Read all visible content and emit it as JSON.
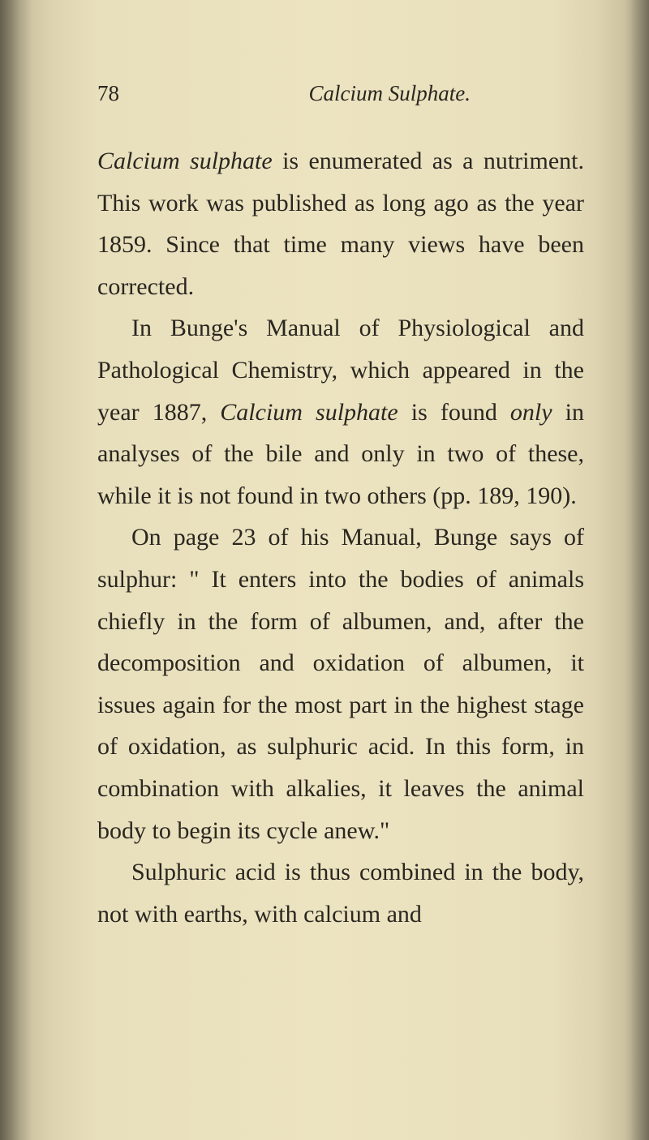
{
  "page": {
    "number": "78",
    "running_title": "Calcium Sulphate.",
    "background_color": "#ece3c0",
    "text_color": "#2a2620",
    "body_fontsize": 30,
    "header_fontsize": 27,
    "line_height": 1.72
  },
  "paragraphs": {
    "p1_lead_italic": "Calcium sulphate",
    "p1_rest": " is enumerated as a nutriment. This work was published as long ago as the year 1859. Since that time many views have been corrected.",
    "p2_a": "In Bunge's Manual of Physiological and Pathological Chemistry, which appeared in the year 1887, ",
    "p2_italic1": "Calcium sulphate",
    "p2_b": " is found ",
    "p2_italic2": "only",
    "p2_c": " in analyses of the bile and only in two of these, while it is not found in two others (pp. 189, 190).",
    "p3": "On page 23 of his Manual, Bunge says of sulphur: \" It enters into the bodies of animals chiefly in the form of albumen, and, after the decomposition and oxidation of albumen, it issues again for the most part in the highest stage of oxidation, as sulphuric acid. In this form, in combination with alkalies, it leaves the animal body to begin its cycle anew.\"",
    "p4": "Sulphuric acid is thus combined in the body, not with earths, with calcium and"
  }
}
